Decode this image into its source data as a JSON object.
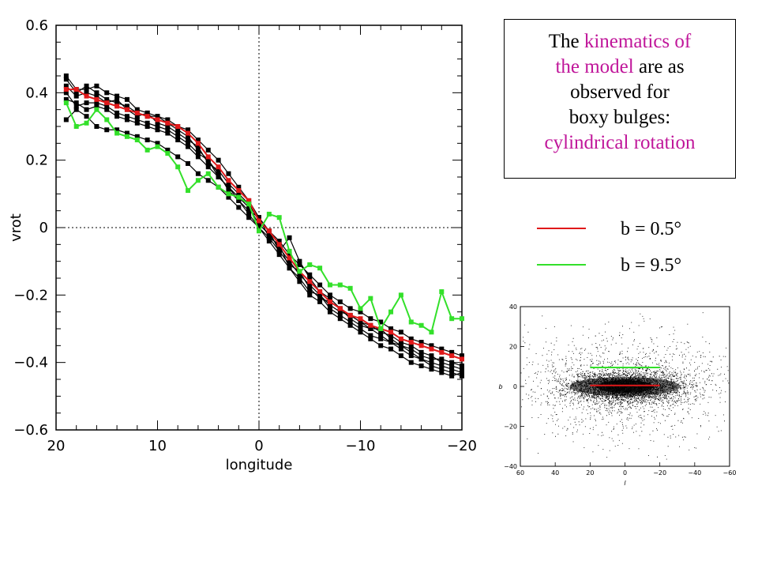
{
  "chart_data": [
    {
      "type": "line",
      "title": "",
      "xlabel": "longitude",
      "ylabel": "vrot",
      "xlim": [
        20,
        -20
      ],
      "ylim": [
        -0.6,
        0.6
      ],
      "xticks": [
        20,
        10,
        0,
        -10,
        -20
      ],
      "xtick_labels": [
        "20",
        "10",
        "0",
        "−10",
        "−20"
      ],
      "yticks": [
        0.6,
        0.4,
        0.2,
        0,
        -0.2,
        -0.4,
        -0.6
      ],
      "ytick_labels": [
        "0.6",
        "0.4",
        "0.2",
        "0",
        "−0.2",
        "−0.4",
        "−0.6"
      ],
      "reference_lines": {
        "x": 0,
        "y": 0,
        "style": "dotted"
      },
      "x": [
        19,
        18,
        17,
        16,
        15,
        14,
        13,
        12,
        11,
        10,
        9,
        8,
        7,
        6,
        5,
        4,
        3,
        2,
        1,
        0,
        -1,
        -2,
        -3,
        -4,
        -5,
        -6,
        -7,
        -8,
        -9,
        -10,
        -11,
        -12,
        -13,
        -14,
        -15,
        -16,
        -17,
        -18,
        -19,
        -20
      ],
      "series": [
        {
          "label": "b = 0.5°",
          "color": "#e0191a",
          "values": [
            0.41,
            0.41,
            0.39,
            0.38,
            0.37,
            0.36,
            0.35,
            0.34,
            0.33,
            0.32,
            0.31,
            0.3,
            0.28,
            0.25,
            0.21,
            0.18,
            0.14,
            0.11,
            0.08,
            0.02,
            -0.01,
            -0.05,
            -0.09,
            -0.13,
            -0.16,
            -0.19,
            -0.22,
            -0.24,
            -0.26,
            -0.27,
            -0.29,
            -0.3,
            -0.31,
            -0.33,
            -0.34,
            -0.35,
            -0.36,
            -0.37,
            -0.38,
            -0.39
          ]
        },
        {
          "label": "b = 9.5°",
          "color": "#33e02a",
          "values": [
            0.37,
            0.3,
            0.31,
            0.35,
            0.32,
            0.28,
            0.27,
            0.26,
            0.23,
            0.24,
            0.22,
            0.18,
            0.11,
            0.14,
            0.16,
            0.12,
            0.1,
            0.09,
            0.07,
            -0.01,
            0.04,
            0.03,
            -0.07,
            -0.13,
            -0.11,
            -0.12,
            -0.17,
            -0.17,
            -0.18,
            -0.24,
            -0.21,
            -0.3,
            -0.25,
            -0.2,
            -0.28,
            -0.29,
            -0.31,
            -0.19,
            -0.27,
            -0.27
          ]
        },
        {
          "color": "#000000",
          "values": [
            0.44,
            0.4,
            0.42,
            0.4,
            0.38,
            0.37,
            0.36,
            0.34,
            0.33,
            0.33,
            0.31,
            0.29,
            0.27,
            0.23,
            0.2,
            0.15,
            0.12,
            0.09,
            0.06,
            0.01,
            -0.02,
            -0.06,
            -0.1,
            -0.14,
            -0.17,
            -0.2,
            -0.23,
            -0.25,
            -0.26,
            -0.28,
            -0.29,
            -0.31,
            -0.32,
            -0.34,
            -0.35,
            -0.37,
            -0.38,
            -0.4,
            -0.41,
            -0.42
          ]
        },
        {
          "color": "#000000",
          "values": [
            0.42,
            0.39,
            0.4,
            0.39,
            0.37,
            0.38,
            0.35,
            0.33,
            0.34,
            0.31,
            0.3,
            0.28,
            0.26,
            0.24,
            0.19,
            0.17,
            0.13,
            0.1,
            0.07,
            0.02,
            -0.01,
            -0.07,
            -0.11,
            -0.13,
            -0.18,
            -0.21,
            -0.22,
            -0.24,
            -0.27,
            -0.29,
            -0.3,
            -0.3,
            -0.33,
            -0.35,
            -0.36,
            -0.38,
            -0.39,
            -0.39,
            -0.4,
            -0.41
          ]
        },
        {
          "color": "#000000",
          "values": [
            0.4,
            0.36,
            0.37,
            0.37,
            0.36,
            0.34,
            0.33,
            0.32,
            0.31,
            0.3,
            0.29,
            0.27,
            0.25,
            0.22,
            0.2,
            0.16,
            0.11,
            0.08,
            0.05,
            0.03,
            -0.03,
            -0.05,
            -0.12,
            -0.15,
            -0.19,
            -0.2,
            -0.24,
            -0.26,
            -0.28,
            -0.3,
            -0.32,
            -0.33,
            -0.34,
            -0.36,
            -0.38,
            -0.39,
            -0.41,
            -0.42,
            -0.43,
            -0.44
          ]
        },
        {
          "color": "#000000",
          "values": [
            0.38,
            0.37,
            0.35,
            0.36,
            0.35,
            0.33,
            0.32,
            0.31,
            0.3,
            0.29,
            0.28,
            0.26,
            0.24,
            0.21,
            0.18,
            0.15,
            0.12,
            0.08,
            0.04,
            0.0,
            -0.04,
            -0.08,
            -0.12,
            -0.16,
            -0.2,
            -0.22,
            -0.25,
            -0.27,
            -0.29,
            -0.31,
            -0.33,
            -0.35,
            -0.36,
            -0.38,
            -0.4,
            -0.41,
            -0.42,
            -0.43,
            -0.44,
            -0.43
          ]
        },
        {
          "color": "#000000",
          "values": [
            0.32,
            0.35,
            0.33,
            0.3,
            0.29,
            0.29,
            0.28,
            0.27,
            0.26,
            0.25,
            0.23,
            0.21,
            0.19,
            0.16,
            0.14,
            0.12,
            0.09,
            0.06,
            0.03,
            0.0,
            -0.03,
            -0.07,
            -0.03,
            -0.1,
            -0.15,
            -0.19,
            -0.21,
            -0.24,
            -0.26,
            -0.28,
            -0.3,
            -0.32,
            -0.34,
            -0.35,
            -0.37,
            -0.39,
            -0.4,
            -0.41,
            -0.42,
            -0.43
          ]
        },
        {
          "color": "#000000",
          "values": [
            0.45,
            0.41,
            0.41,
            0.42,
            0.4,
            0.39,
            0.38,
            0.35,
            0.34,
            0.33,
            0.32,
            0.3,
            0.29,
            0.26,
            0.23,
            0.2,
            0.16,
            0.12,
            0.08,
            0.03,
            -0.01,
            -0.04,
            -0.08,
            -0.11,
            -0.14,
            -0.17,
            -0.2,
            -0.22,
            -0.24,
            -0.25,
            -0.27,
            -0.28,
            -0.3,
            -0.31,
            -0.33,
            -0.34,
            -0.35,
            -0.36,
            -0.37,
            -0.38
          ]
        }
      ]
    },
    {
      "type": "scatter",
      "title": "",
      "xlabel": "l",
      "ylabel": "b",
      "xlim": [
        60,
        -60
      ],
      "ylim": [
        -40,
        40
      ],
      "xticks": [
        60,
        40,
        20,
        0,
        -20,
        -40,
        -60
      ],
      "xtick_labels": [
        "60",
        "40",
        "20",
        "0",
        "−20",
        "−40",
        "−60"
      ],
      "yticks": [
        40,
        20,
        0,
        -20,
        -40
      ],
      "ytick_labels": [
        "40",
        "20",
        "0",
        "−20",
        "−40"
      ],
      "markers": [
        {
          "b": 9.5,
          "l_range": [
            20,
            -20
          ],
          "color": "#33e02a"
        },
        {
          "b": 0.5,
          "l_range": [
            20,
            -20
          ],
          "color": "#e0191a"
        }
      ]
    }
  ],
  "callout": {
    "line1_plain": "The",
    "line1_hl": "kinematics of",
    "line2_hl": "the model",
    "line2_plain": "are as",
    "line3": "observed for",
    "line4": "boxy bulges:",
    "line5_hl": "cylindrical rotation"
  },
  "legend": [
    {
      "label": "b = 0.5°",
      "color": "#e0191a"
    },
    {
      "label": "b = 9.5°",
      "color": "#33e02a"
    }
  ]
}
